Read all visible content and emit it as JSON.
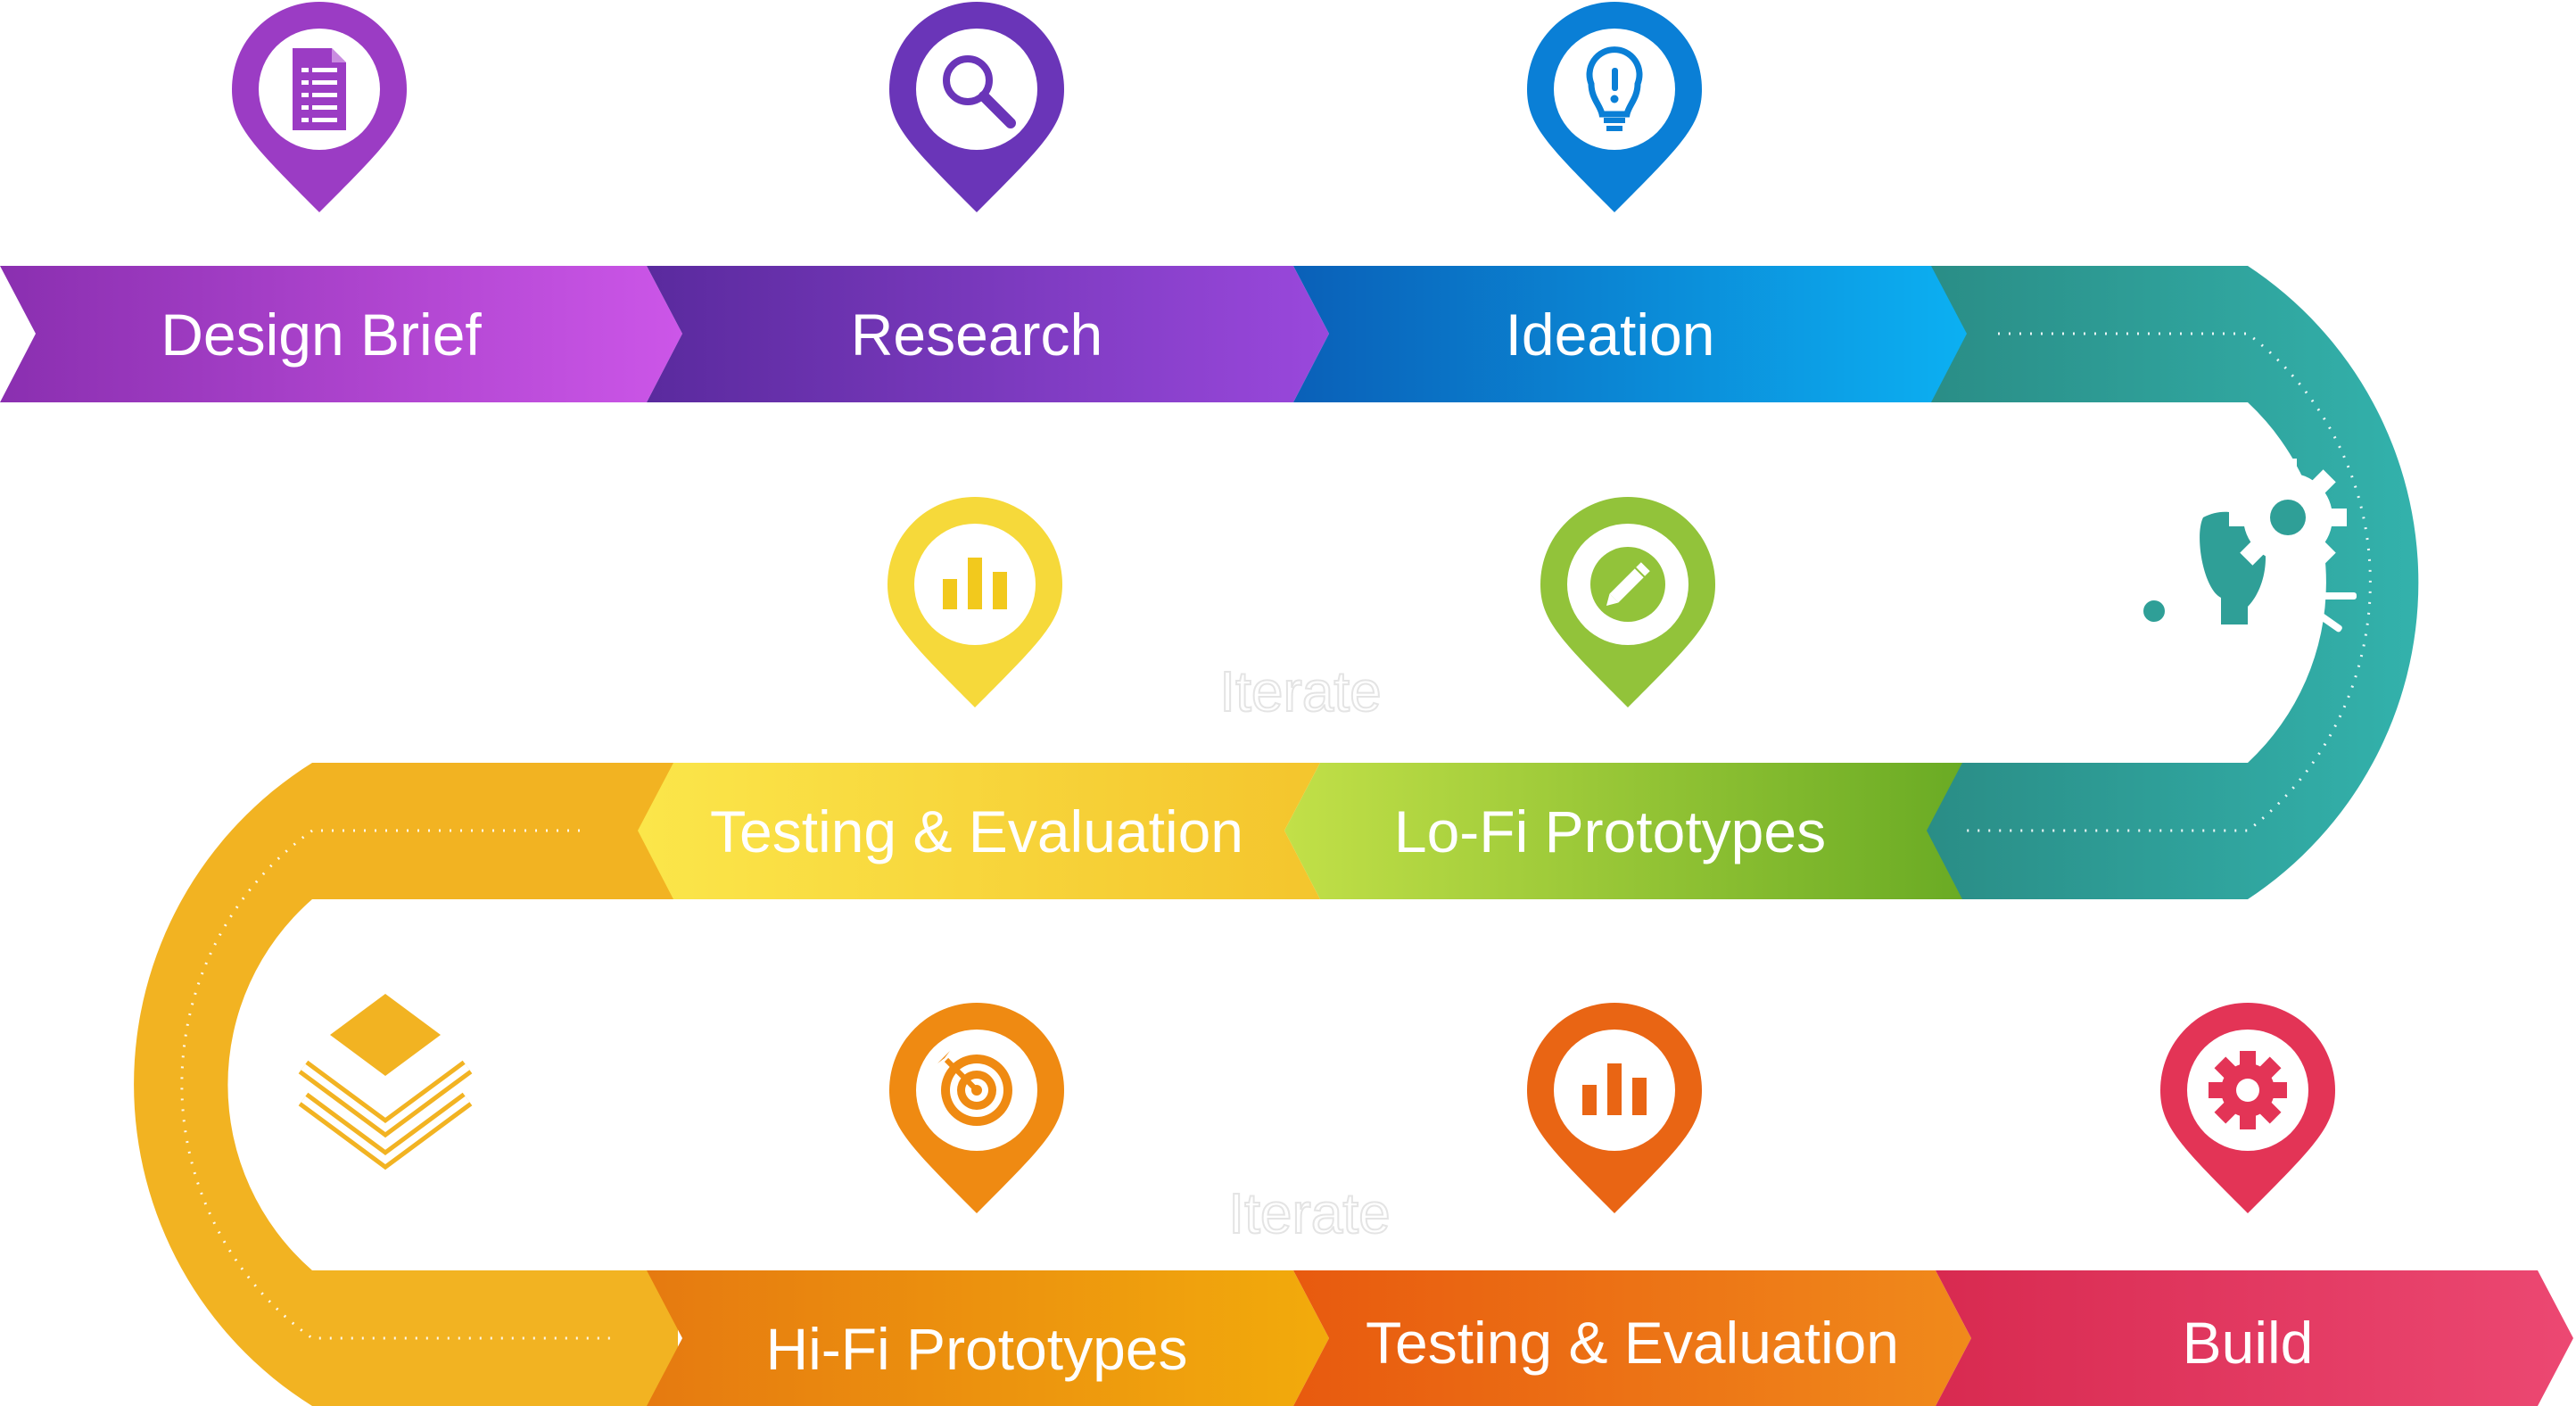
{
  "stages": [
    {
      "id": "design-brief",
      "label": "Design Brief",
      "icon": "document-icon",
      "color": "#9b3cc4"
    },
    {
      "id": "research",
      "label": "Research",
      "icon": "magnifier-icon",
      "color": "#6a35b8"
    },
    {
      "id": "ideation",
      "label": "Ideation",
      "icon": "lightbulb-icon",
      "color": "#0a7fd6"
    },
    {
      "id": "lofi",
      "label": "Lo-Fi Prototypes",
      "icon": "pencil-icon",
      "color": "#92c33a"
    },
    {
      "id": "testing-1",
      "label": "Testing & Evaluation",
      "icon": "bar-chart-icon",
      "color": "#f6d93a"
    },
    {
      "id": "hifi",
      "label": "Hi-Fi Prototypes",
      "icon": "target-icon",
      "color": "#ef8a12"
    },
    {
      "id": "testing-2",
      "label": "Testing & Evaluation",
      "icon": "bar-chart-icon",
      "color": "#e96514"
    },
    {
      "id": "build",
      "label": "Build",
      "icon": "gear-icon",
      "color": "#e33456"
    }
  ],
  "iterate_labels": [
    "Iterate",
    "Iterate"
  ],
  "decorations": {
    "right_turn_icon": "lightbulb-gears-icon",
    "left_turn_icon": "monitor-layers-icon"
  }
}
